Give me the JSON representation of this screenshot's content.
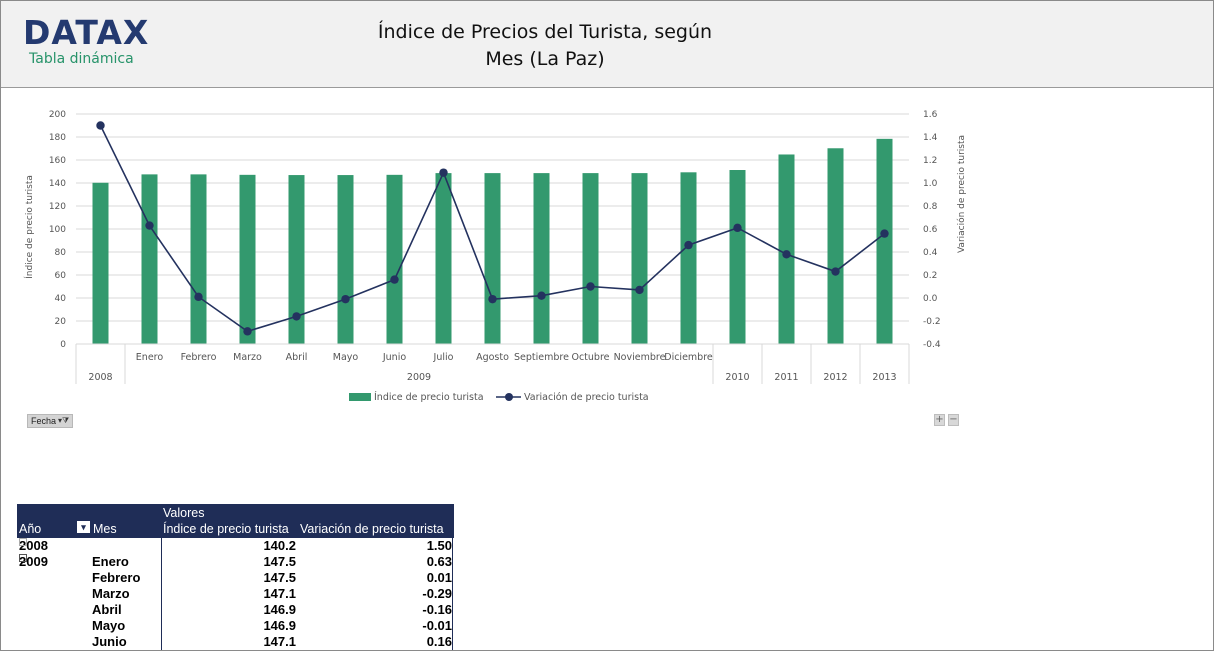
{
  "header": {
    "logo_text": "DATAX",
    "logo_subtitle": "Tabla dinámica",
    "title_line1": "Índice de Precios del Turista, según",
    "title_line2": "Mes (La Paz)"
  },
  "colors": {
    "bar": "#33996e",
    "line": "#24325f",
    "header_bg": "#f1f1f1",
    "pivot_header": "#1f2d57"
  },
  "chart_data": {
    "type": "bar",
    "categories": [
      "",
      "Enero",
      "Febrero",
      "Marzo",
      "Abril",
      "Mayo",
      "Junio",
      "Julio",
      "Agosto",
      "Septiembre",
      "Octubre",
      "Noviembre",
      "Diciembre",
      "",
      "",
      "",
      ""
    ],
    "groups": [
      "2008",
      "2009",
      "2009",
      "2009",
      "2009",
      "2009",
      "2009",
      "2009",
      "2009",
      "2009",
      "2009",
      "2009",
      "2009",
      "2010",
      "2011",
      "2012",
      "2013"
    ],
    "group_labels": [
      "2008",
      "2009",
      "2010",
      "2011",
      "2012",
      "2013"
    ],
    "series": [
      {
        "name": "Índice de precio turista",
        "type": "bar",
        "axis": "left",
        "values": [
          140.2,
          147.5,
          147.5,
          147.1,
          146.9,
          146.9,
          147.1,
          148.6,
          148.6,
          148.6,
          148.6,
          148.6,
          149.3,
          151.3,
          164.8,
          170.2,
          178.4
        ]
      },
      {
        "name": "Variación de precio turista",
        "type": "line",
        "axis": "right",
        "values": [
          1.5,
          0.63,
          0.01,
          -0.29,
          -0.16,
          -0.01,
          0.16,
          1.09,
          -0.01,
          0.02,
          0.1,
          0.07,
          0.46,
          0.61,
          0.38,
          0.23,
          0.56
        ]
      }
    ],
    "ylabel": "Índice de precio turista",
    "y2label": "Variación de precio turista",
    "ylim": [
      0,
      200
    ],
    "y2lim": [
      -0.4,
      1.6
    ],
    "yticks": [
      "0",
      "20",
      "40",
      "60",
      "80",
      "100",
      "120",
      "140",
      "160",
      "180",
      "200"
    ],
    "y2ticks": [
      "-0.4",
      "-0.2",
      "0.0",
      "0.2",
      "0.4",
      "0.6",
      "0.8",
      "1.0",
      "1.2",
      "1.4",
      "1.6"
    ],
    "grid": true,
    "legend": "bottom"
  },
  "controls": {
    "fecha_label": "Fecha",
    "plus": "+",
    "minus": "−"
  },
  "pivot": {
    "values_label": "Valores",
    "col_year": "Año",
    "col_mes": "Mes",
    "col_idx": "Índice de precio turista",
    "col_var": "Variación de precio turista",
    "rows": [
      {
        "year": "2008",
        "mes": "",
        "idx": "140.2",
        "var": "1.50"
      },
      {
        "year": "2009",
        "mes": "Enero",
        "idx": "147.5",
        "var": "0.63"
      },
      {
        "year": "",
        "mes": "Febrero",
        "idx": "147.5",
        "var": "0.01"
      },
      {
        "year": "",
        "mes": "Marzo",
        "idx": "147.1",
        "var": "-0.29"
      },
      {
        "year": "",
        "mes": "Abril",
        "idx": "146.9",
        "var": "-0.16"
      },
      {
        "year": "",
        "mes": "Mayo",
        "idx": "146.9",
        "var": "-0.01"
      },
      {
        "year": "",
        "mes": "Junio",
        "idx": "147.1",
        "var": "0.16"
      }
    ]
  }
}
